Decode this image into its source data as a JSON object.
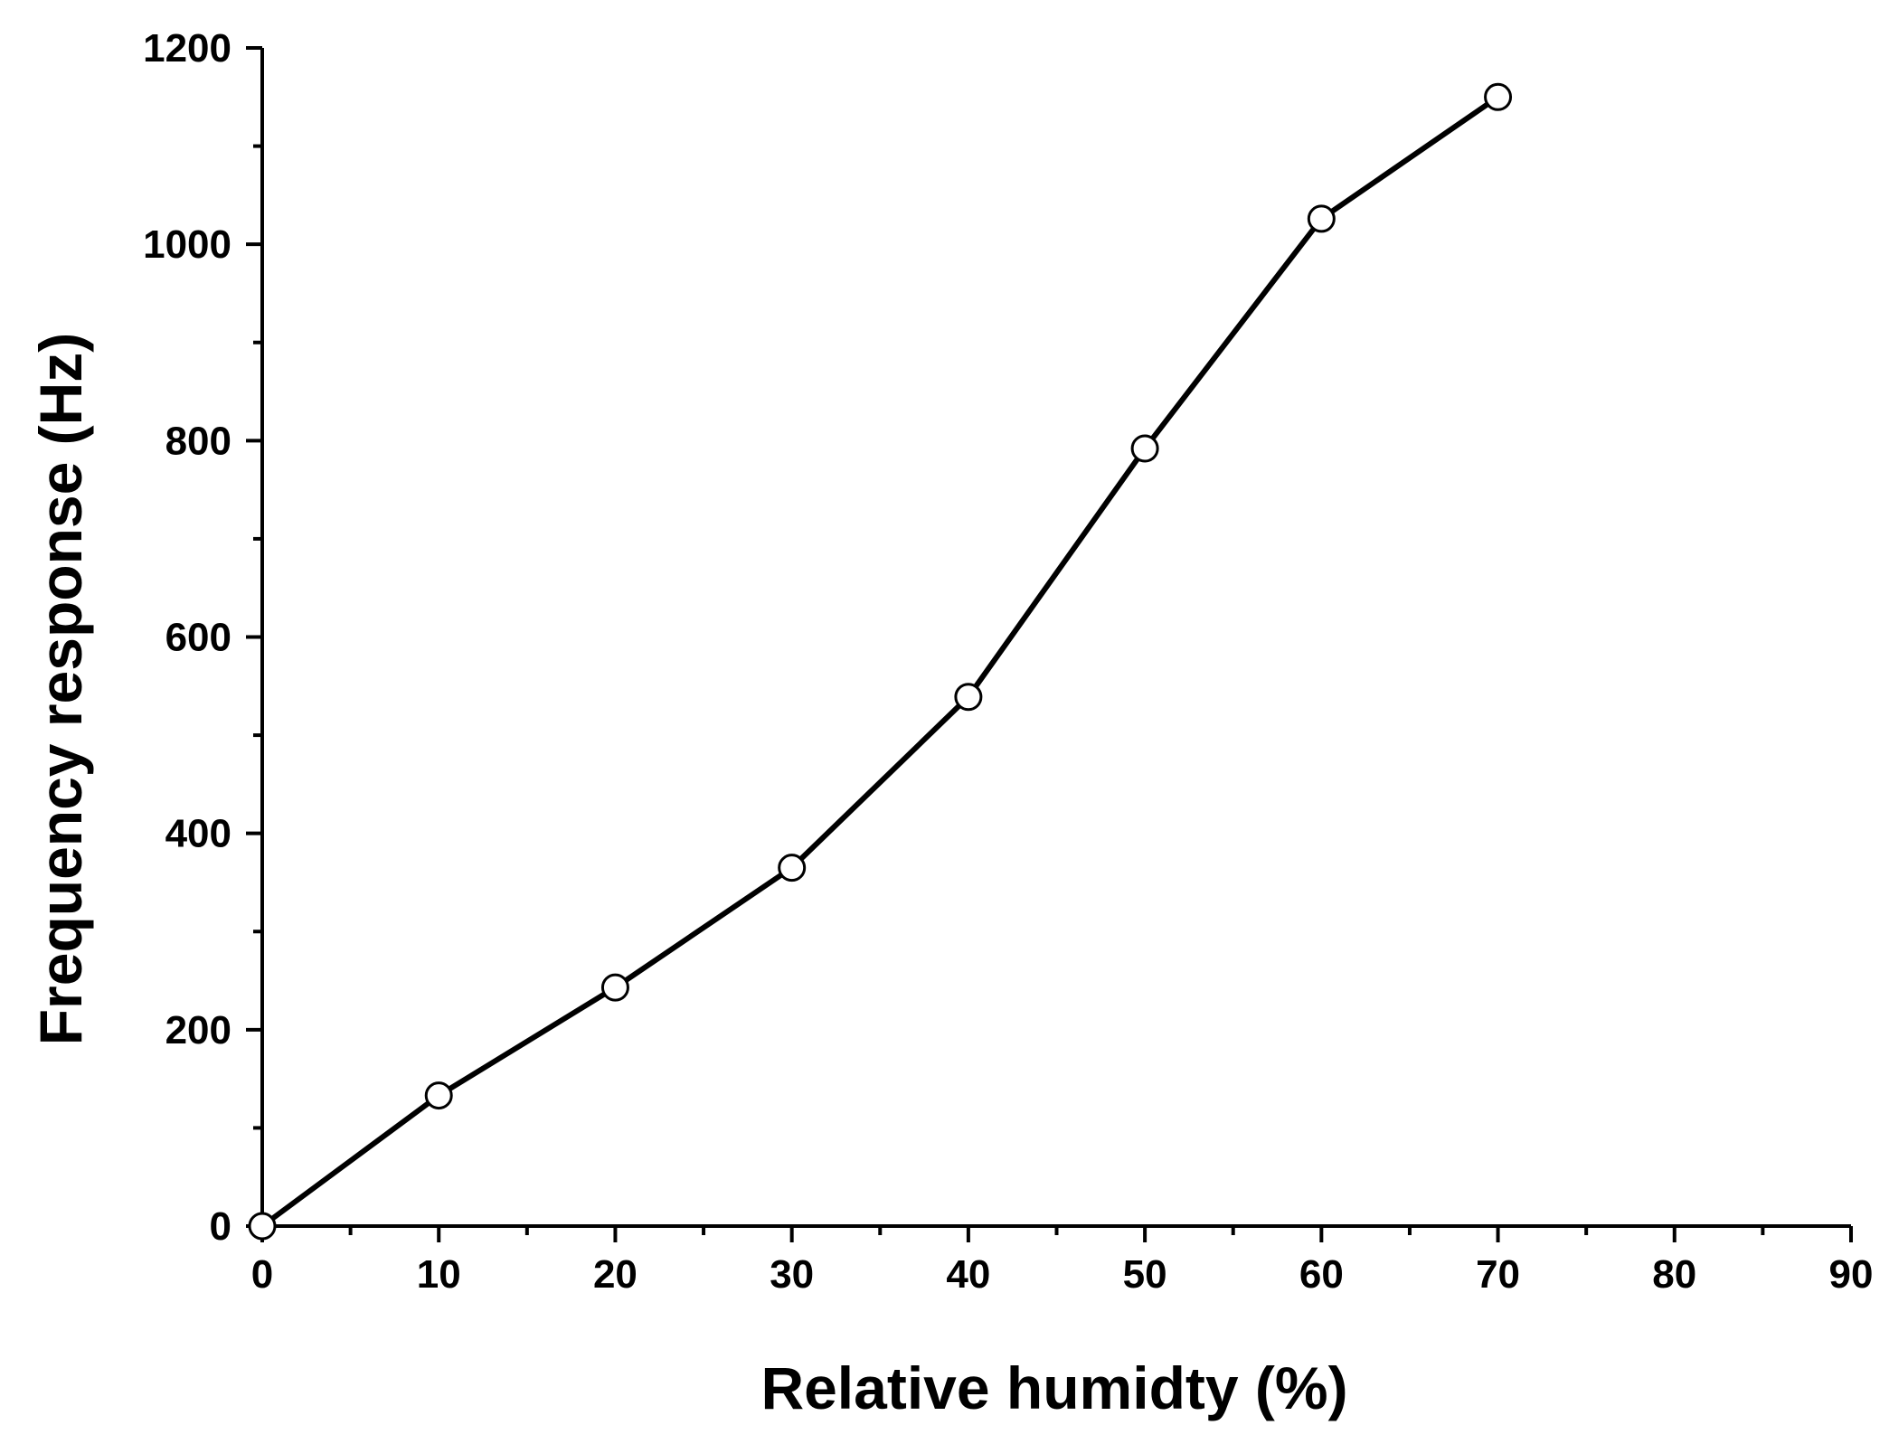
{
  "chart_data": {
    "type": "line",
    "title": "",
    "xlabel": "Relative humidty (%)",
    "ylabel": "Frequency response (Hz)",
    "xlim": [
      0,
      90
    ],
    "ylim": [
      0,
      1200
    ],
    "x_ticks": [
      0,
      10,
      20,
      30,
      40,
      50,
      60,
      70,
      80,
      90
    ],
    "y_ticks": [
      0,
      200,
      400,
      600,
      800,
      1000,
      1200
    ],
    "x_tick_labels": [
      "0",
      "10",
      "20",
      "30",
      "40",
      "50",
      "60",
      "70",
      "80",
      "90"
    ],
    "y_tick_labels": [
      "0",
      "200",
      "400",
      "600",
      "800",
      "1000",
      "1200"
    ],
    "grid": false,
    "legend": "none",
    "marker": "open-circle",
    "line_color": "#000000",
    "marker_fill": "#ffffff",
    "series": [
      {
        "x": [
          0,
          10,
          20,
          30,
          40,
          50,
          60,
          70
        ],
        "values": [
          0,
          133,
          243,
          365,
          539,
          792,
          1026,
          1150
        ]
      }
    ]
  }
}
